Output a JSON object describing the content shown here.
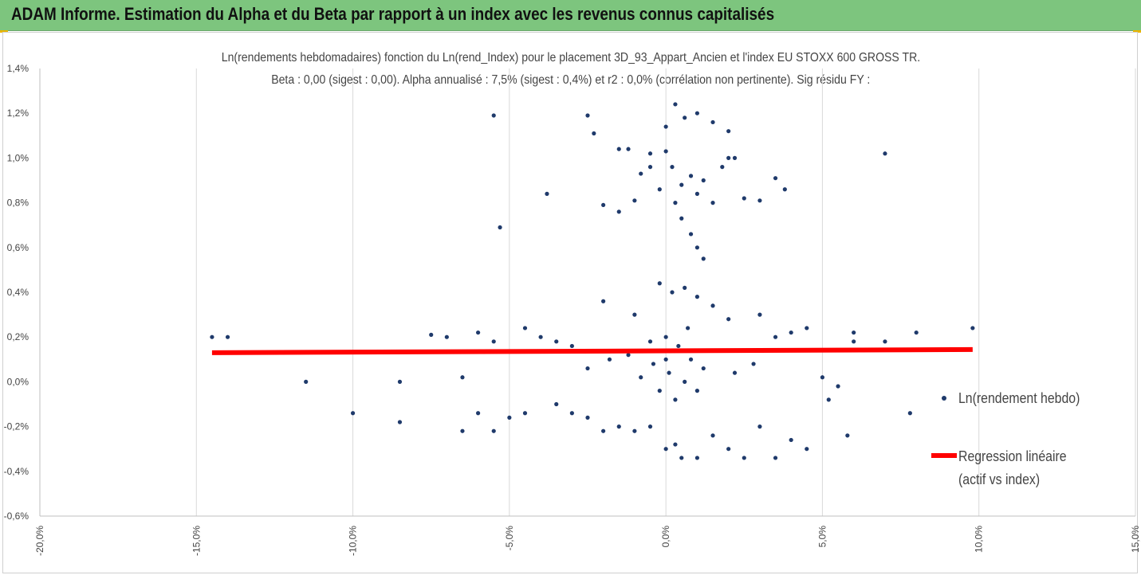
{
  "banner": {
    "title": "ADAM Informe. Estimation du Alpha et du Beta par rapport à un index avec les revenus connus capitalisés"
  },
  "colors": {
    "banner_bg": "#7dc57e",
    "points": "#1f3a6b",
    "regression": "#ff0000",
    "corner": "#e8b400"
  },
  "chart_data": {
    "type": "scatter",
    "title_line1": "Ln(rendements hebdomadaires) fonction du Ln(rend_Index) pour le placement 3D_93_Appart_Ancien et l'index EU STOXX 600 GROSS TR.",
    "title_line2": "Beta : 0,00 (sigest : 0,00). Alpha annualisé : 7,5% (sigest : 0,4%) et r2 : 0,0% (corrélation non pertinente). Sig résidu FY :",
    "xlim": [
      -0.2,
      0.15
    ],
    "ylim": [
      -0.006,
      0.014
    ],
    "x_ticks": [
      "-20,0%",
      "-15,0%",
      "-10,0%",
      "-5,0%",
      "0,0%",
      "5,0%",
      "10,0%",
      "15,0%"
    ],
    "y_ticks": [
      "-0,6%",
      "-0,4%",
      "-0,2%",
      "0,0%",
      "0,2%",
      "0,4%",
      "0,6%",
      "0,8%",
      "1,0%",
      "1,2%",
      "1,4%"
    ],
    "grid": "vertical",
    "legend_position": "right",
    "series": [
      {
        "name": "Ln(rendement hebdo)",
        "points": [
          [
            -0.145,
            0.002
          ],
          [
            -0.14,
            0.002
          ],
          [
            -0.115,
            0.0
          ],
          [
            -0.1,
            -0.0014
          ],
          [
            -0.085,
            -0.0018
          ],
          [
            -0.085,
            0.0
          ],
          [
            -0.075,
            0.0021
          ],
          [
            -0.055,
            0.0119
          ],
          [
            -0.053,
            0.0069
          ],
          [
            -0.038,
            0.0084
          ],
          [
            -0.06,
            0.0022
          ],
          [
            -0.065,
            0.0002
          ],
          [
            -0.055,
            -0.0022
          ],
          [
            -0.065,
            -0.0022
          ],
          [
            -0.07,
            0.002
          ],
          [
            -0.045,
            0.0024
          ],
          [
            -0.04,
            0.002
          ],
          [
            -0.035,
            0.0018
          ],
          [
            -0.03,
            0.0016
          ],
          [
            -0.05,
            -0.0016
          ],
          [
            -0.06,
            -0.0014
          ],
          [
            -0.055,
            0.0018
          ],
          [
            -0.045,
            -0.0014
          ],
          [
            -0.025,
            0.0119
          ],
          [
            -0.023,
            0.0111
          ],
          [
            -0.02,
            0.0079
          ],
          [
            -0.015,
            0.0076
          ],
          [
            -0.01,
            0.0081
          ],
          [
            -0.008,
            0.0093
          ],
          [
            -0.005,
            0.0096
          ],
          [
            -0.015,
            0.0104
          ],
          [
            -0.012,
            0.0104
          ],
          [
            -0.005,
            0.0102
          ],
          [
            0.0,
            0.0103
          ],
          [
            0.002,
            0.0096
          ],
          [
            0.005,
            0.0088
          ],
          [
            0.008,
            0.0092
          ],
          [
            0.01,
            0.0084
          ],
          [
            0.012,
            0.009
          ],
          [
            0.015,
            0.008
          ],
          [
            0.018,
            0.0096
          ],
          [
            0.02,
            0.01
          ],
          [
            0.022,
            0.01
          ],
          [
            0.025,
            0.0082
          ],
          [
            0.03,
            0.0081
          ],
          [
            0.035,
            0.0091
          ],
          [
            0.038,
            0.0086
          ],
          [
            0.07,
            0.0102
          ],
          [
            0.003,
            0.0124
          ],
          [
            0.006,
            0.0118
          ],
          [
            0.01,
            0.012
          ],
          [
            0.015,
            0.0116
          ],
          [
            0.02,
            0.0112
          ],
          [
            0.005,
            0.0073
          ],
          [
            0.008,
            0.0066
          ],
          [
            0.01,
            0.006
          ],
          [
            0.012,
            0.0055
          ],
          [
            0.003,
            0.008
          ],
          [
            -0.002,
            0.0086
          ],
          [
            0.0,
            0.0114
          ],
          [
            -0.02,
            0.0036
          ],
          [
            -0.01,
            0.003
          ],
          [
            -0.002,
            0.0044
          ],
          [
            0.002,
            0.004
          ],
          [
            0.006,
            0.0042
          ],
          [
            0.01,
            0.0038
          ],
          [
            0.015,
            0.0034
          ],
          [
            0.02,
            0.0028
          ],
          [
            0.03,
            0.003
          ],
          [
            0.035,
            0.002
          ],
          [
            0.04,
            0.0022
          ],
          [
            0.045,
            0.0024
          ],
          [
            0.06,
            0.0022
          ],
          [
            0.08,
            0.0022
          ],
          [
            0.098,
            0.0024
          ],
          [
            0.05,
            0.0002
          ],
          [
            0.055,
            -0.0002
          ],
          [
            0.052,
            -0.0008
          ],
          [
            0.045,
            -0.003
          ],
          [
            0.04,
            -0.0026
          ],
          [
            0.035,
            -0.0034
          ],
          [
            0.025,
            -0.0034
          ],
          [
            0.02,
            -0.003
          ],
          [
            0.015,
            -0.0024
          ],
          [
            0.01,
            -0.0034
          ],
          [
            0.005,
            -0.0034
          ],
          [
            0.003,
            -0.0028
          ],
          [
            0.0,
            -0.003
          ],
          [
            -0.005,
            -0.002
          ],
          [
            -0.01,
            -0.0022
          ],
          [
            -0.015,
            -0.002
          ],
          [
            -0.02,
            -0.0022
          ],
          [
            -0.025,
            -0.0016
          ],
          [
            -0.03,
            -0.0014
          ],
          [
            -0.035,
            -0.001
          ],
          [
            0.06,
            0.0018
          ],
          [
            0.07,
            0.0018
          ],
          [
            0.078,
            -0.0014
          ],
          [
            0.058,
            -0.0024
          ],
          [
            0.03,
            -0.002
          ],
          [
            -0.005,
            0.0018
          ],
          [
            0.0,
            0.002
          ],
          [
            0.004,
            0.0016
          ],
          [
            0.008,
            0.001
          ],
          [
            0.012,
            0.0006
          ],
          [
            -0.004,
            0.0008
          ],
          [
            0.001,
            0.0004
          ],
          [
            0.006,
            0.0
          ],
          [
            0.01,
            -0.0004
          ],
          [
            -0.008,
            0.0002
          ],
          [
            -0.012,
            0.0012
          ],
          [
            0.016,
            0.0014
          ],
          [
            0.003,
            -0.0008
          ],
          [
            -0.002,
            -0.0004
          ],
          [
            0.007,
            0.0024
          ],
          [
            -0.018,
            0.001
          ],
          [
            0.022,
            0.0004
          ],
          [
            -0.025,
            0.0006
          ],
          [
            0.028,
            0.0008
          ],
          [
            0.0,
            0.001
          ]
        ]
      },
      {
        "name": "Regression linéaire (actif vs index)",
        "line": [
          [
            -0.145,
            0.0013
          ],
          [
            0.098,
            0.00144
          ]
        ]
      }
    ]
  },
  "legend": {
    "series1_label": "Ln(rendement hebdo)",
    "series2_label_line1": "Regression linéaire",
    "series2_label_line2": "(actif vs index)"
  }
}
